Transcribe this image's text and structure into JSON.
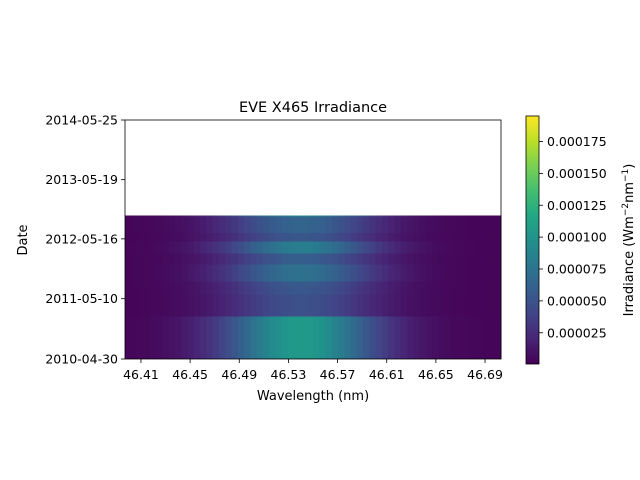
{
  "chart_data": {
    "type": "heatmap",
    "title": "EVE X465 Irradiance",
    "xlabel": "Wavelength (nm)",
    "ylabel": "Date",
    "xlim": [
      46.397,
      46.703
    ],
    "xticks": [
      "46.41",
      "46.45",
      "46.49",
      "46.53",
      "46.57",
      "46.61",
      "46.65",
      "46.69"
    ],
    "ylim": [
      "2010-04-30",
      "2014-05-25"
    ],
    "yticks": [
      "2010-04-30",
      "2011-05-10",
      "2012-05-16",
      "2013-05-19",
      "2014-05-25"
    ],
    "colorbar": {
      "label_main": "Irradiance (Wm",
      "label_exp1": "−2",
      "label_mid": "nm",
      "label_exp2": "−1",
      "label_end": ")",
      "colormap": "viridis",
      "range": [
        5e-07,
        0.000195
      ],
      "ticks": [
        "0.000025",
        "0.000050",
        "0.000075",
        "0.000100",
        "0.000125",
        "0.000150",
        "0.000175"
      ]
    },
    "profile": {
      "description": "line emission peaked near 46.54 nm",
      "center_nm": 46.54,
      "sigma_nm": 0.045,
      "base": 3e-06
    },
    "observations": [
      {
        "date": "2010-04-30",
        "peak": 0.0001
      },
      {
        "date": "2010-05-01",
        "peak": 0.000105
      },
      {
        "date": "2010-05-03",
        "peak": 9.5e-05
      },
      {
        "date": "2010-05-05",
        "peak": 9.8e-05
      },
      {
        "date": "2010-05-08",
        "peak": 0.000102
      },
      {
        "date": "2011-01-20",
        "peak": 4.5e-05
      },
      {
        "date": "2011-06-05",
        "peak": 5e-05
      },
      {
        "date": "2011-07-25",
        "peak": 5.2e-05
      },
      {
        "date": "2011-08-25",
        "peak": 7e-05
      },
      {
        "date": "2011-12-10",
        "peak": 5.5e-05
      },
      {
        "date": "2012-02-15",
        "peak": 8e-05
      },
      {
        "date": "2012-05-01",
        "peak": 5e-05
      },
      {
        "date": "2012-06-20",
        "peak": 6e-05
      },
      {
        "date": "2012-10-01",
        "peak": 9e-05
      }
    ]
  }
}
